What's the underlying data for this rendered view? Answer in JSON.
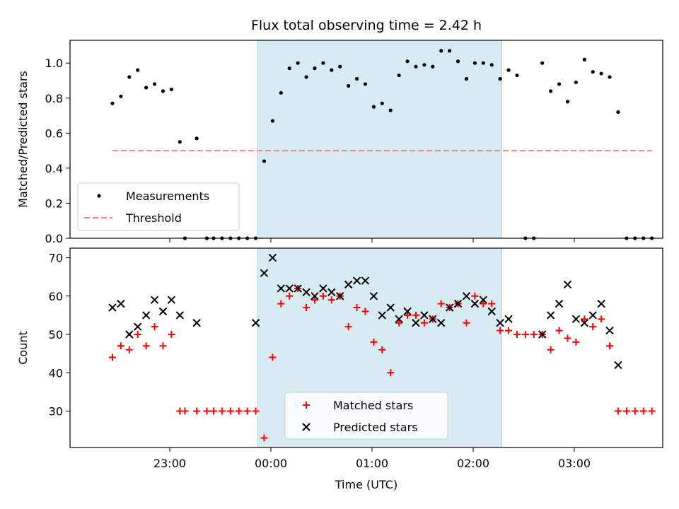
{
  "chart_data": {
    "title": "Flux total observing time = 2.42 h",
    "xlabel": "Time (UTC)",
    "x_ticks": [
      "23:00",
      "00:00",
      "01:00",
      "02:00",
      "03:00"
    ],
    "colors": {
      "span": "#add8e6",
      "measurements": "#000000",
      "threshold": "#f08080",
      "matched": "#ff0000",
      "predicted": "#000000"
    },
    "panels": [
      {
        "type": "scatter",
        "ylabel": "Matched/Predicted stars",
        "ylim": [
          0,
          1.13
        ],
        "y_ticks": [
          "0.0",
          "0.2",
          "0.4",
          "0.6",
          "0.8",
          "1.0"
        ],
        "legend_location": "lower-left",
        "span": [
          "23:52",
          "02:17"
        ],
        "series": [
          {
            "name": "Measurements",
            "marker": "dot",
            "points": [
              [
                "22:26",
                0.77
              ],
              [
                "22:31",
                0.81
              ],
              [
                "22:36",
                0.92
              ],
              [
                "22:41",
                0.96
              ],
              [
                "22:46",
                0.86
              ],
              [
                "22:51",
                0.88
              ],
              [
                "22:56",
                0.84
              ],
              [
                "23:01",
                0.85
              ],
              [
                "23:06",
                0.55
              ],
              [
                "23:09",
                0.0
              ],
              [
                "23:16",
                0.57
              ],
              [
                "23:22",
                0.0
              ],
              [
                "23:26",
                0.0
              ],
              [
                "23:31",
                0.0
              ],
              [
                "23:36",
                0.0
              ],
              [
                "23:41",
                0.0
              ],
              [
                "23:46",
                0.0
              ],
              [
                "23:51",
                0.0
              ],
              [
                "23:56",
                0.44
              ],
              [
                "00:01",
                0.67
              ],
              [
                "00:06",
                0.83
              ],
              [
                "00:11",
                0.97
              ],
              [
                "00:16",
                1.0
              ],
              [
                "00:21",
                0.92
              ],
              [
                "00:26",
                0.97
              ],
              [
                "00:31",
                1.0
              ],
              [
                "00:36",
                0.96
              ],
              [
                "00:41",
                0.98
              ],
              [
                "00:46",
                0.87
              ],
              [
                "00:51",
                0.91
              ],
              [
                "00:56",
                0.88
              ],
              [
                "01:01",
                0.75
              ],
              [
                "01:06",
                0.77
              ],
              [
                "01:11",
                0.73
              ],
              [
                "01:16",
                0.93
              ],
              [
                "01:21",
                1.01
              ],
              [
                "01:26",
                0.98
              ],
              [
                "01:31",
                0.99
              ],
              [
                "01:36",
                0.98
              ],
              [
                "01:41",
                1.07
              ],
              [
                "01:46",
                1.07
              ],
              [
                "01:51",
                1.01
              ],
              [
                "01:56",
                0.91
              ],
              [
                "02:01",
                1.0
              ],
              [
                "02:06",
                1.0
              ],
              [
                "02:11",
                0.99
              ],
              [
                "02:16",
                0.91
              ],
              [
                "02:21",
                0.96
              ],
              [
                "02:26",
                0.93
              ],
              [
                "02:31",
                0.0
              ],
              [
                "02:36",
                0.0
              ],
              [
                "02:41",
                1.0
              ],
              [
                "02:46",
                0.84
              ],
              [
                "02:51",
                0.88
              ],
              [
                "02:56",
                0.78
              ],
              [
                "03:01",
                0.89
              ],
              [
                "03:06",
                1.02
              ],
              [
                "03:11",
                0.95
              ],
              [
                "03:16",
                0.94
              ],
              [
                "03:21",
                0.92
              ],
              [
                "03:26",
                0.72
              ],
              [
                "03:31",
                0.0
              ],
              [
                "03:36",
                0.0
              ],
              [
                "03:41",
                0.0
              ],
              [
                "03:46",
                0.0
              ]
            ]
          },
          {
            "name": "Threshold",
            "type": "line",
            "style": "dashed",
            "points": [
              [
                "22:26",
                0.5
              ],
              [
                "03:46",
                0.5
              ]
            ]
          }
        ]
      },
      {
        "type": "scatter",
        "ylabel": "Count",
        "ylim": [
          20.5,
          72.5
        ],
        "y_ticks": [
          "30",
          "40",
          "50",
          "60",
          "70"
        ],
        "legend_location": "lower-center",
        "span": [
          "23:52",
          "02:17"
        ],
        "series": [
          {
            "name": "Matched stars",
            "marker": "plus",
            "points": [
              [
                "22:26",
                44
              ],
              [
                "22:31",
                47
              ],
              [
                "22:36",
                46
              ],
              [
                "22:41",
                50
              ],
              [
                "22:46",
                47
              ],
              [
                "22:51",
                52
              ],
              [
                "22:56",
                47
              ],
              [
                "23:01",
                50
              ],
              [
                "23:06",
                30
              ],
              [
                "23:09",
                30
              ],
              [
                "23:16",
                30
              ],
              [
                "23:22",
                30
              ],
              [
                "23:26",
                30
              ],
              [
                "23:31",
                30
              ],
              [
                "23:36",
                30
              ],
              [
                "23:41",
                30
              ],
              [
                "23:46",
                30
              ],
              [
                "23:51",
                30
              ],
              [
                "23:56",
                23
              ],
              [
                "00:01",
                44
              ],
              [
                "00:06",
                58
              ],
              [
                "00:11",
                60
              ],
              [
                "00:16",
                62
              ],
              [
                "00:21",
                57
              ],
              [
                "00:26",
                59
              ],
              [
                "00:31",
                60
              ],
              [
                "00:36",
                59
              ],
              [
                "00:41",
                60
              ],
              [
                "00:46",
                52
              ],
              [
                "00:51",
                57
              ],
              [
                "00:56",
                56
              ],
              [
                "01:01",
                48
              ],
              [
                "01:06",
                46
              ],
              [
                "01:11",
                40
              ],
              [
                "01:16",
                53
              ],
              [
                "01:21",
                55
              ],
              [
                "01:26",
                55
              ],
              [
                "01:31",
                53
              ],
              [
                "01:36",
                54
              ],
              [
                "01:41",
                58
              ],
              [
                "01:46",
                57
              ],
              [
                "01:51",
                58
              ],
              [
                "01:56",
                53
              ],
              [
                "02:01",
                60
              ],
              [
                "02:06",
                58
              ],
              [
                "02:11",
                58
              ],
              [
                "02:16",
                51
              ],
              [
                "02:21",
                51
              ],
              [
                "02:26",
                50
              ],
              [
                "02:31",
                50
              ],
              [
                "02:36",
                50
              ],
              [
                "02:41",
                50
              ],
              [
                "02:46",
                46
              ],
              [
                "02:51",
                51
              ],
              [
                "02:56",
                49
              ],
              [
                "03:01",
                48
              ],
              [
                "03:06",
                54
              ],
              [
                "03:11",
                52
              ],
              [
                "03:16",
                54
              ],
              [
                "03:21",
                47
              ],
              [
                "03:26",
                30
              ],
              [
                "03:31",
                30
              ],
              [
                "03:36",
                30
              ],
              [
                "03:41",
                30
              ],
              [
                "03:46",
                30
              ]
            ]
          },
          {
            "name": "Predicted stars",
            "marker": "x",
            "points": [
              [
                "22:26",
                57
              ],
              [
                "22:31",
                58
              ],
              [
                "22:36",
                50
              ],
              [
                "22:41",
                52
              ],
              [
                "22:46",
                55
              ],
              [
                "22:51",
                59
              ],
              [
                "22:56",
                56
              ],
              [
                "23:01",
                59
              ],
              [
                "23:06",
                55
              ],
              [
                "23:16",
                53
              ],
              [
                "23:51",
                53
              ],
              [
                "23:56",
                66
              ],
              [
                "00:01",
                70
              ],
              [
                "00:06",
                62
              ],
              [
                "00:11",
                62
              ],
              [
                "00:16",
                62
              ],
              [
                "00:21",
                61
              ],
              [
                "00:26",
                60
              ],
              [
                "00:31",
                62
              ],
              [
                "00:36",
                61
              ],
              [
                "00:41",
                60
              ],
              [
                "00:46",
                63
              ],
              [
                "00:51",
                64
              ],
              [
                "00:56",
                64
              ],
              [
                "01:01",
                60
              ],
              [
                "01:06",
                55
              ],
              [
                "01:11",
                57
              ],
              [
                "01:16",
                54
              ],
              [
                "01:21",
                56
              ],
              [
                "01:26",
                53
              ],
              [
                "01:31",
                55
              ],
              [
                "01:36",
                54
              ],
              [
                "01:41",
                53
              ],
              [
                "01:46",
                57
              ],
              [
                "01:51",
                58
              ],
              [
                "01:56",
                60
              ],
              [
                "02:01",
                58
              ],
              [
                "02:06",
                59
              ],
              [
                "02:11",
                56
              ],
              [
                "02:16",
                53
              ],
              [
                "02:21",
                54
              ],
              [
                "02:41",
                50
              ],
              [
                "02:46",
                55
              ],
              [
                "02:51",
                58
              ],
              [
                "02:56",
                63
              ],
              [
                "03:01",
                54
              ],
              [
                "03:06",
                53
              ],
              [
                "03:11",
                55
              ],
              [
                "03:16",
                58
              ],
              [
                "03:21",
                51
              ],
              [
                "03:26",
                42
              ]
            ]
          }
        ]
      }
    ]
  }
}
